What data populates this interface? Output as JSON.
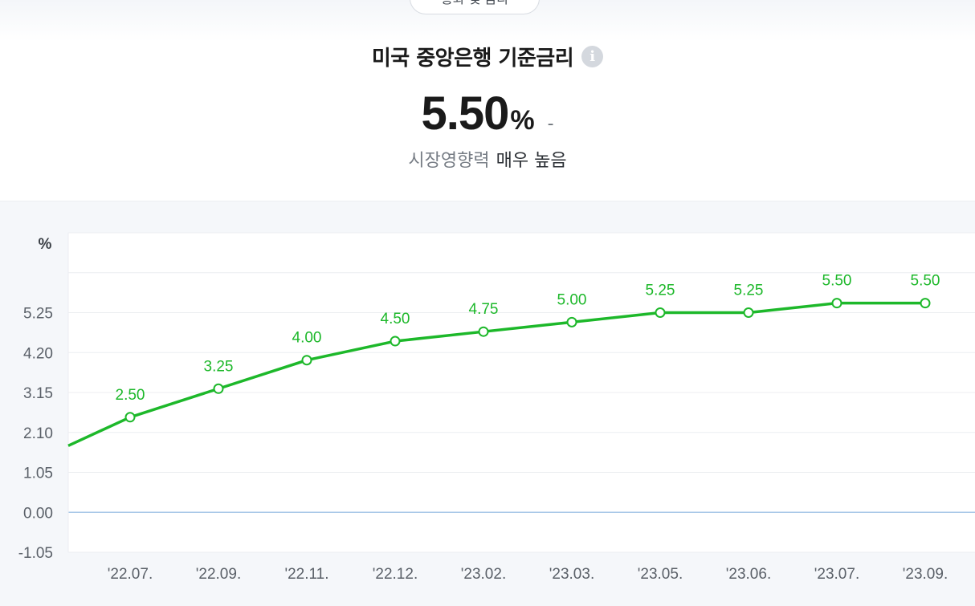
{
  "header": {
    "category_tab": "통화 및 금리",
    "title": "미국 중앙은행 기준금리",
    "info_icon": "info-icon",
    "value": "5.50",
    "unit": "%",
    "change": "-",
    "impact_label": "시장영향력",
    "impact_value": "매우 높음"
  },
  "chart_data": {
    "type": "line",
    "ylabel": "%",
    "y_ticks": [
      "5.25",
      "4.20",
      "3.15",
      "2.10",
      "1.05",
      "0.00",
      "-1.05"
    ],
    "ylim": [
      -1.05,
      7.35
    ],
    "categories": [
      "'22.07.",
      "'22.09.",
      "'22.11.",
      "'22.12.",
      "'23.02.",
      "'23.03.",
      "'23.05.",
      "'23.06.",
      "'23.07.",
      "'23.09."
    ],
    "values": [
      2.5,
      3.25,
      4.0,
      4.5,
      4.75,
      5.0,
      5.25,
      5.25,
      5.5,
      5.5
    ],
    "labels": [
      "2.50",
      "3.25",
      "4.00",
      "4.50",
      "4.75",
      "5.00",
      "5.25",
      "5.25",
      "5.50",
      "5.50"
    ],
    "previous_value": 1.75,
    "line_color": "#1db82a",
    "zero_line_color": "#a9c8e8",
    "grid": true
  }
}
